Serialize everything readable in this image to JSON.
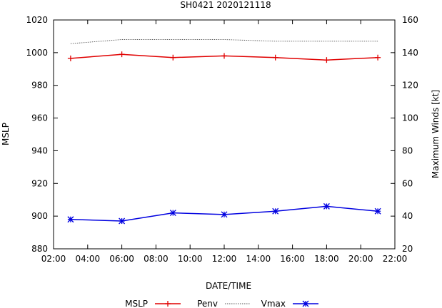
{
  "chart_data": {
    "type": "line",
    "title": "SH0421 2020121118",
    "xlabel": "DATE/TIME",
    "ylabel": "MSLP",
    "y2label": "Maximum Winds [kt]",
    "x_ticks": [
      "02:00",
      "04:00",
      "06:00",
      "08:00",
      "10:00",
      "12:00",
      "14:00",
      "16:00",
      "18:00",
      "20:00",
      "22:00"
    ],
    "xlim_hours": [
      2,
      22
    ],
    "ylim": [
      880,
      1020
    ],
    "y_ticks": [
      880,
      900,
      920,
      940,
      960,
      980,
      1000,
      1020
    ],
    "y2lim": [
      20,
      160
    ],
    "y2_ticks": [
      20,
      40,
      60,
      80,
      100,
      120,
      140,
      160
    ],
    "x_hours": [
      3,
      6,
      9,
      12,
      15,
      18,
      21
    ],
    "series": [
      {
        "name": "MSLP",
        "axis": "y",
        "values": [
          996.5,
          999,
          997,
          998,
          997,
          995.5,
          997
        ],
        "color": "#e00000",
        "marker": "plus",
        "style": "solid"
      },
      {
        "name": "Penv",
        "axis": "y",
        "values": [
          1005.5,
          1008,
          1008,
          1008,
          1007,
          1007,
          1007
        ],
        "color": "#555555",
        "marker": "none",
        "style": "dotted"
      },
      {
        "name": "Vmax",
        "axis": "y2",
        "values": [
          38,
          37,
          42,
          41,
          43,
          46,
          43
        ],
        "color": "#0000e0",
        "marker": "star",
        "style": "solid"
      }
    ],
    "legend": {
      "position": "bottom",
      "entries": [
        "MSLP",
        "Penv",
        "Vmax"
      ]
    }
  }
}
